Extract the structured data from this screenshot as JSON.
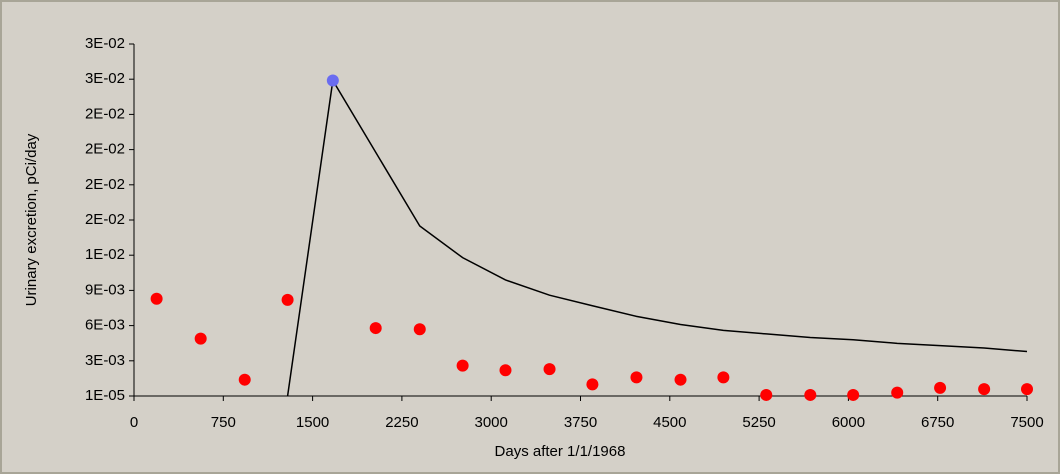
{
  "chart_data": {
    "type": "scatter",
    "x_label": "Days after 1/1/1968",
    "y_label": "Urinary excretion, pCi/day",
    "xlim": [
      0,
      7500
    ],
    "xticks": [
      0,
      750,
      1500,
      2250,
      3000,
      3750,
      4500,
      5250,
      6000,
      6750,
      7500
    ],
    "ylim": [
      1e-05,
      0.03001
    ],
    "yticks": [
      {
        "value": 1e-05,
        "label": "1E-05"
      },
      {
        "value": 0.00301,
        "label": "3E-03"
      },
      {
        "value": 0.00601,
        "label": "6E-03"
      },
      {
        "value": 0.00901,
        "label": "9E-03"
      },
      {
        "value": 0.01201,
        "label": "1E-02"
      },
      {
        "value": 0.01501,
        "label": "2E-02"
      },
      {
        "value": 0.01801,
        "label": "2E-02"
      },
      {
        "value": 0.02101,
        "label": "2E-02"
      },
      {
        "value": 0.02401,
        "label": "2E-02"
      },
      {
        "value": 0.02701,
        "label": "3E-02"
      },
      {
        "value": 0.03001,
        "label": "3E-02"
      }
    ],
    "series": [
      {
        "style": "line",
        "color": "#000000",
        "x": [
          1290,
          1670,
          2400,
          2760,
          3120,
          3490,
          3850,
          4220,
          4590,
          4950,
          5310,
          5680,
          6040,
          6410,
          6770,
          7140,
          7500
        ],
        "values": [
          1e-05,
          0.0269,
          0.0145,
          0.0118,
          0.0099,
          0.0086,
          0.0077,
          0.0068,
          0.0061,
          0.0056,
          0.0053,
          0.005,
          0.0048,
          0.0045,
          0.0043,
          0.0041,
          0.0038
        ]
      },
      {
        "style": "marker",
        "color": "#ff0000",
        "x": [
          190,
          560,
          930,
          1290,
          2030,
          2400,
          2760,
          3120,
          3490,
          3850,
          4220,
          4590,
          4950,
          5310,
          5680,
          6040,
          6410,
          6770,
          7140,
          7500
        ],
        "values": [
          0.0083,
          0.0049,
          0.0014,
          0.0082,
          0.0058,
          0.0057,
          0.0026,
          0.0022,
          0.0023,
          0.001,
          0.0016,
          0.0014,
          0.0016,
          0.0001,
          0.0001,
          0.0001,
          0.0003,
          0.0007,
          0.0006,
          0.0006
        ]
      },
      {
        "style": "marker",
        "color": "#6a6cf0",
        "x": [
          1670
        ],
        "values": [
          0.0269
        ]
      }
    ]
  }
}
